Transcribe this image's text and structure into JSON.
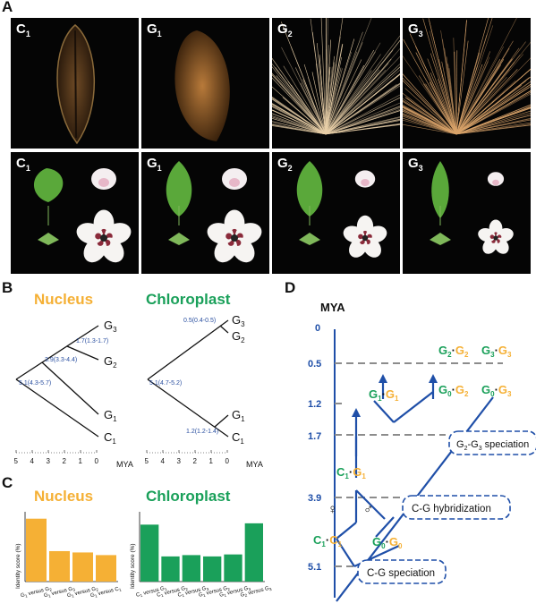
{
  "panels": {
    "a": "A",
    "b": "B",
    "c": "C",
    "d": "D"
  },
  "photos_top": [
    {
      "main": "C",
      "sub": "1"
    },
    {
      "main": "G",
      "sub": "1"
    },
    {
      "main": "G",
      "sub": "2"
    },
    {
      "main": "G",
      "sub": "3"
    }
  ],
  "photos_bottom": [
    {
      "main": "C",
      "sub": "1"
    },
    {
      "main": "G",
      "sub": "1"
    },
    {
      "main": "G",
      "sub": "2"
    },
    {
      "main": "G",
      "sub": "3"
    }
  ],
  "tree_nucleus": {
    "title": "Nucleus",
    "tips": [
      {
        "main": "G",
        "sub": "3"
      },
      {
        "main": "G",
        "sub": "2"
      },
      {
        "main": "G",
        "sub": "1"
      },
      {
        "main": "C",
        "sub": "1"
      }
    ],
    "nodes": [
      "1.7(1.3-1.7)",
      "3.9(3.3-4.4)",
      "5.1(4.3-5.7)"
    ]
  },
  "tree_chloroplast": {
    "title": "Chloroplast",
    "tips": [
      {
        "main": "G",
        "sub": "3"
      },
      {
        "main": "G",
        "sub": "2"
      },
      {
        "main": "G",
        "sub": "1"
      },
      {
        "main": "C",
        "sub": "1"
      }
    ],
    "nodes": [
      "0.5(0.4-0.5)",
      "5.1(4.7-5.2)",
      "1.2(1.2-1.4)"
    ]
  },
  "axis_b": {
    "ticks": [
      "5",
      "4",
      "3",
      "2",
      "1",
      "0"
    ],
    "unit": "MYA"
  },
  "bars_nucleus": {
    "title": "Nucleus",
    "ylabel": "Identity score (%)",
    "color": "#f5b035",
    "values": [
      0.95,
      0.46,
      0.44,
      0.4
    ],
    "labels": [
      {
        "a": "G",
        "as": "1",
        "b": "G",
        "bs": "2"
      },
      {
        "a": "G",
        "as": "1",
        "b": "G",
        "bs": "3"
      },
      {
        "a": "G",
        "as": "1",
        "b": "G",
        "bs": "2"
      },
      {
        "a": "G",
        "as": "1",
        "b": "C",
        "bs": "1"
      }
    ]
  },
  "bars_chloroplast": {
    "title": "Chloroplast",
    "ylabel": "Identity score (%)",
    "color": "#1aa05a",
    "values": [
      0.86,
      0.38,
      0.4,
      0.38,
      0.41,
      0.88
    ],
    "labels": [
      {
        "a": "C",
        "as": "1",
        "b": "G",
        "bs": "1"
      },
      {
        "a": "C",
        "as": "1",
        "b": "G",
        "bs": "2"
      },
      {
        "a": "C",
        "as": "1",
        "b": "G",
        "bs": "3"
      },
      {
        "a": "G",
        "as": "1",
        "b": "G",
        "bs": "2"
      },
      {
        "a": "G",
        "as": "1",
        "b": "G",
        "bs": "3"
      },
      {
        "a": "G",
        "as": "2",
        "b": "G",
        "bs": "3"
      }
    ]
  },
  "panel_d": {
    "axis_title": "MYA",
    "ticks": [
      "0",
      "0.5",
      "1.2",
      "1.7",
      "3.9",
      "5.1"
    ],
    "events": [
      "G-G speciation",
      "C-G hybridization",
      "C-G speciation"
    ],
    "event_first": {
      "a": "G",
      "as": "2",
      "b": "G",
      "bs": "3"
    },
    "female": "♀",
    "male": "♂",
    "genomes": [
      {
        "id": "g2g2",
        "a": "G",
        "as": "2",
        "b": "G",
        "bs": "2"
      },
      {
        "id": "g3g3",
        "a": "G",
        "as": "3",
        "b": "G",
        "bs": "3"
      },
      {
        "id": "g1g1",
        "a": "G",
        "as": "1",
        "b": "G",
        "bs": "1"
      },
      {
        "id": "g0g2",
        "a": "G",
        "as": "0",
        "b": "G",
        "bs": "2"
      },
      {
        "id": "g0g3",
        "a": "G",
        "as": "0",
        "b": "G",
        "bs": "3"
      },
      {
        "id": "c1g1",
        "a": "C",
        "as": "1",
        "b": "G",
        "bs": "1"
      },
      {
        "id": "c1c1",
        "a": "C",
        "as": "1",
        "b": "C",
        "bs": "1"
      },
      {
        "id": "g0g0",
        "a": "G",
        "as": "0",
        "b": "G",
        "bs": "0"
      }
    ]
  },
  "colors": {
    "blue": "#1f4fa8",
    "green": "#1aa05a",
    "orange": "#f5b035",
    "gray": "#8c8c8c"
  }
}
